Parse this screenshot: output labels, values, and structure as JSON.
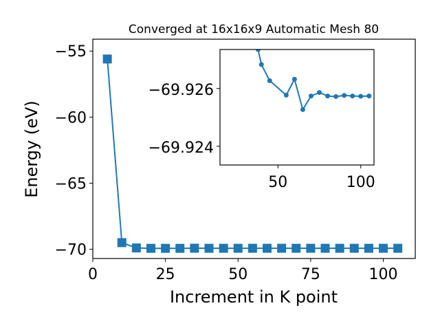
{
  "chart_data": [
    {
      "type": "line",
      "title": "Converged at 16x16x9 Automatic Mesh 80",
      "xlabel": "Increment in K point",
      "ylabel": "Energy (eV)",
      "xlim": [
        0,
        111
      ],
      "ylim": [
        -70.7,
        -54.1
      ],
      "xticks": [
        0,
        25,
        50,
        75,
        100
      ],
      "yticks": [
        -55,
        -60,
        -65,
        -70
      ],
      "xtick_labels": [
        "0",
        "25",
        "50",
        "75",
        "100"
      ],
      "ytick_labels": [
        "−55",
        "−60",
        "−65",
        "−70"
      ],
      "marker": "square",
      "color": "#1f77b4",
      "grid": false,
      "series": [
        {
          "x": [
            5,
            10,
            15,
            20,
            25,
            30,
            35,
            40,
            45,
            50,
            55,
            60,
            65,
            70,
            75,
            80,
            85,
            90,
            95,
            100,
            105
          ],
          "y": [
            -55.6,
            -69.5,
            -69.9,
            -69.93,
            -69.93,
            -69.93,
            -69.92,
            -69.927,
            -69.9266,
            -69.9258,
            -69.9258,
            -69.9265,
            -69.9246,
            -69.9257,
            -69.926,
            -69.9257,
            -69.9257,
            -69.9257,
            -69.9257,
            -69.9257,
            -69.9257
          ]
        }
      ]
    },
    {
      "type": "line",
      "inset": true,
      "xlim": [
        15,
        108
      ],
      "ylim": [
        -69.92335,
        -69.92735
      ],
      "xticks": [
        50,
        100
      ],
      "yticks": [
        -69.926,
        -69.924
      ],
      "xtick_labels": [
        "50",
        "100"
      ],
      "ytick_labels": [
        "−69.926",
        "−69.924"
      ],
      "marker": "circle",
      "color": "#1f77b4",
      "series": [
        {
          "x": [
            38,
            40,
            45,
            55,
            60,
            65,
            70,
            75,
            80,
            85,
            90,
            95,
            100,
            105
          ],
          "y": [
            -69.92735,
            -69.92683,
            -69.92627,
            -69.92577,
            -69.92632,
            -69.92527,
            -69.92574,
            -69.92586,
            -69.92574,
            -69.92572,
            -69.92576,
            -69.92574,
            -69.92573,
            -69.92574
          ]
        }
      ]
    }
  ]
}
